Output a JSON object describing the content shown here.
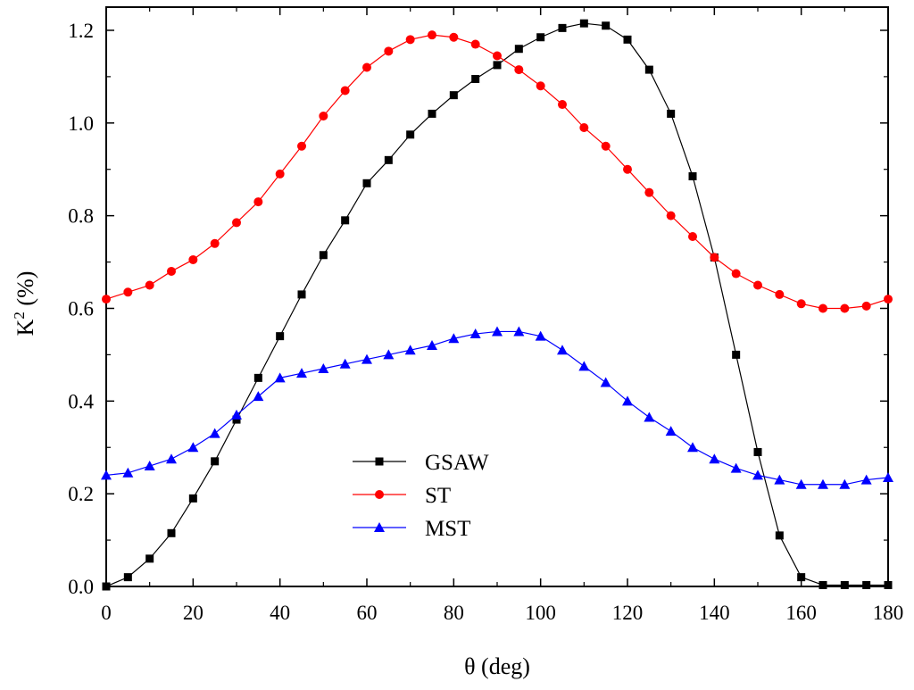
{
  "chart_data": {
    "type": "line",
    "title": "",
    "xlabel": "θ (deg)",
    "ylabel_main": "K",
    "ylabel_sup": "2",
    "ylabel_rest": " (%)",
    "xlim": [
      0,
      180
    ],
    "ylim": [
      0,
      1.25
    ],
    "xticks": [
      0,
      20,
      40,
      60,
      80,
      100,
      120,
      140,
      160,
      180
    ],
    "yticks": [
      0.0,
      0.2,
      0.4,
      0.6,
      0.8,
      1.0,
      1.2
    ],
    "xtick_labels": [
      "0",
      "20",
      "40",
      "60",
      "80",
      "100",
      "120",
      "140",
      "160",
      "180"
    ],
    "ytick_labels": [
      "0.0",
      "0.2",
      "0.4",
      "0.6",
      "0.8",
      "1.0",
      "1.2"
    ],
    "grid": false,
    "legend_position": "lower-center",
    "x": [
      0,
      5,
      10,
      15,
      20,
      25,
      30,
      35,
      40,
      45,
      50,
      55,
      60,
      65,
      70,
      75,
      80,
      85,
      90,
      95,
      100,
      105,
      110,
      115,
      120,
      125,
      130,
      135,
      140,
      145,
      150,
      155,
      160,
      165,
      170,
      175,
      180
    ],
    "series": [
      {
        "name": "GSAW",
        "color": "#000000",
        "marker": "square",
        "values": [
          0.0,
          0.02,
          0.06,
          0.115,
          0.19,
          0.27,
          0.36,
          0.45,
          0.54,
          0.63,
          0.715,
          0.79,
          0.87,
          0.92,
          0.975,
          1.02,
          1.06,
          1.095,
          1.125,
          1.16,
          1.185,
          1.205,
          1.215,
          1.21,
          1.18,
          1.115,
          1.02,
          0.885,
          0.71,
          0.5,
          0.29,
          0.11,
          0.02,
          0.003,
          0.003,
          0.003,
          0.003
        ]
      },
      {
        "name": "ST",
        "color": "#ff0000",
        "marker": "circle",
        "values": [
          0.62,
          0.635,
          0.65,
          0.68,
          0.705,
          0.74,
          0.785,
          0.83,
          0.89,
          0.95,
          1.015,
          1.07,
          1.12,
          1.155,
          1.18,
          1.19,
          1.185,
          1.17,
          1.145,
          1.115,
          1.08,
          1.04,
          0.99,
          0.95,
          0.9,
          0.85,
          0.8,
          0.755,
          0.71,
          0.675,
          0.65,
          0.63,
          0.61,
          0.6,
          0.6,
          0.605,
          0.62
        ]
      },
      {
        "name": "MST",
        "color": "#0000ff",
        "marker": "triangle",
        "values": [
          0.24,
          0.245,
          0.26,
          0.275,
          0.3,
          0.33,
          0.37,
          0.41,
          0.45,
          0.46,
          0.47,
          0.48,
          0.49,
          0.5,
          0.51,
          0.52,
          0.535,
          0.545,
          0.55,
          0.55,
          0.54,
          0.51,
          0.475,
          0.44,
          0.4,
          0.365,
          0.335,
          0.3,
          0.275,
          0.255,
          0.24,
          0.23,
          0.22,
          0.22,
          0.22,
          0.23,
          0.235
        ]
      }
    ]
  }
}
